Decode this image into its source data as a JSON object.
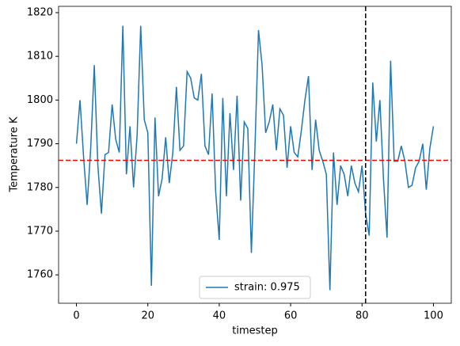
{
  "chart_data": {
    "type": "line",
    "x_label": "timestep",
    "y_label": "Temperature K",
    "x": [
      0,
      1,
      2,
      3,
      4,
      5,
      6,
      7,
      8,
      9,
      10,
      11,
      12,
      13,
      14,
      15,
      16,
      17,
      18,
      19,
      20,
      21,
      22,
      23,
      24,
      25,
      26,
      27,
      28,
      29,
      30,
      31,
      32,
      33,
      34,
      35,
      36,
      37,
      38,
      39,
      40,
      41,
      42,
      43,
      44,
      45,
      46,
      47,
      48,
      49,
      50,
      51,
      52,
      53,
      54,
      55,
      56,
      57,
      58,
      59,
      60,
      61,
      62,
      63,
      64,
      65,
      66,
      67,
      68,
      69,
      70,
      71,
      72,
      73,
      74,
      75,
      76,
      77,
      78,
      79,
      80,
      81,
      82,
      83,
      84,
      85,
      86,
      87,
      88,
      89,
      90,
      91,
      92,
      93,
      94,
      95,
      96,
      97,
      98,
      99,
      100
    ],
    "series": [
      {
        "name": "strain: 0.975",
        "color": "#1f77b4",
        "values": [
          1790,
          1800,
          1787,
          1776,
          1789,
          1808,
          1785,
          1774,
          1787.5,
          1788,
          1799,
          1791,
          1788,
          1817,
          1783,
          1794,
          1780,
          1792,
          1817,
          1795.5,
          1792.5,
          1757.5,
          1796,
          1778,
          1782,
          1791.5,
          1781,
          1788,
          1803,
          1788.5,
          1789.5,
          1806.5,
          1805,
          1800.5,
          1800,
          1806,
          1789.5,
          1787.5,
          1801.5,
          1779,
          1768,
          1800.5,
          1778,
          1797,
          1784,
          1801,
          1777,
          1795,
          1793.5,
          1765,
          1789,
          1816,
          1808,
          1792.5,
          1795,
          1799,
          1788.5,
          1798,
          1796.5,
          1784.5,
          1794,
          1788,
          1787,
          1793,
          1800,
          1805.5,
          1784,
          1795.5,
          1788.5,
          1786,
          1783,
          1756.5,
          1788,
          1776,
          1785,
          1783,
          1778,
          1785,
          1781,
          1779,
          1785,
          1774,
          1769,
          1804,
          1790.5,
          1800,
          1782,
          1768.5,
          1809,
          1786,
          1786,
          1789.5,
          1786,
          1780,
          1780.5,
          1784.5,
          1786,
          1790,
          1779.5,
          1789,
          1794
        ]
      }
    ],
    "hline": {
      "value": 1786.2,
      "color": "#ff0000"
    },
    "vline": {
      "value": 81,
      "color": "#000000"
    },
    "xlim": [
      -5,
      105
    ],
    "ylim": [
      1753.5,
      1821.45
    ],
    "xticks": [
      0,
      20,
      40,
      60,
      80,
      100
    ],
    "yticks": [
      1760,
      1770,
      1780,
      1790,
      1800,
      1810,
      1820
    ],
    "legend": "lower center"
  }
}
